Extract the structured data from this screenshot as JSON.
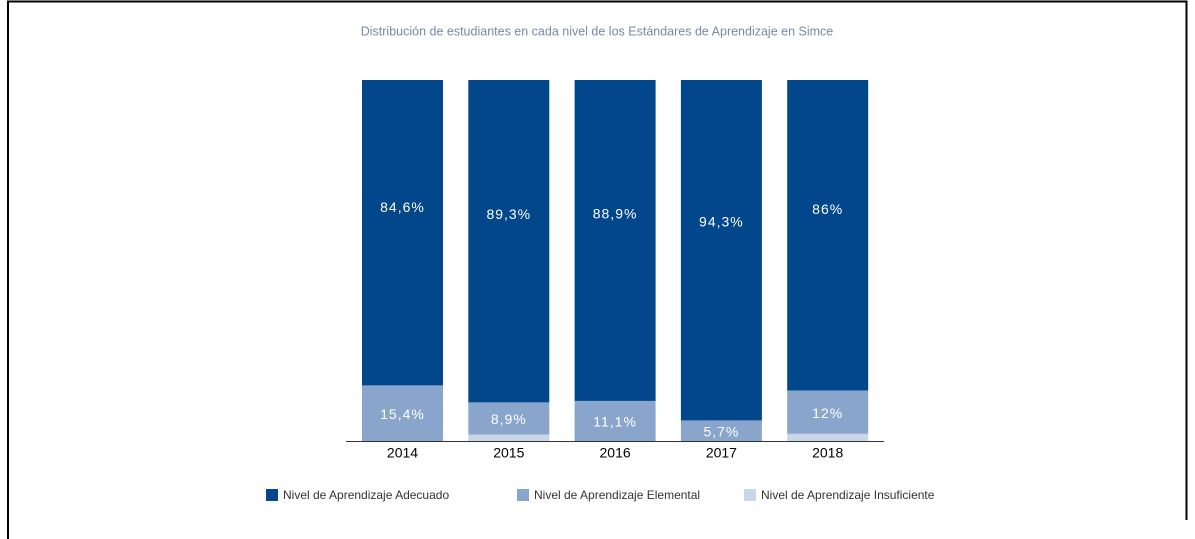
{
  "chart_data": {
    "type": "stacked_bar",
    "title": "Distribución de estudiantes en cada nivel de los Estándares de Aprendizaje en Simce",
    "categories": [
      "2014",
      "2015",
      "2016",
      "2017",
      "2018"
    ],
    "series": [
      {
        "name": "Nivel de Aprendizaje Adecuado",
        "color": "#02468c",
        "values": [
          84.6,
          89.3,
          88.9,
          94.3,
          86
        ],
        "value_labels": [
          "84,6%",
          "89,3%",
          "88,9%",
          "94,3%",
          "86%"
        ]
      },
      {
        "name": "Nivel de Aprendizaje Elemental",
        "color": "#8aa5cc",
        "values": [
          15.4,
          8.9,
          11.1,
          5.7,
          12
        ],
        "value_labels": [
          "15,4%",
          "8,9%",
          "11,1%",
          "5,7%",
          "12%"
        ]
      },
      {
        "name": "Nivel de Aprendizaje Insuficiente",
        "color": "#c8d6e8",
        "values": [
          null,
          1.8,
          null,
          null,
          2
        ],
        "value_labels": [
          null,
          "1,8%",
          null,
          null,
          "2%"
        ]
      }
    ],
    "legend": "bottom"
  }
}
